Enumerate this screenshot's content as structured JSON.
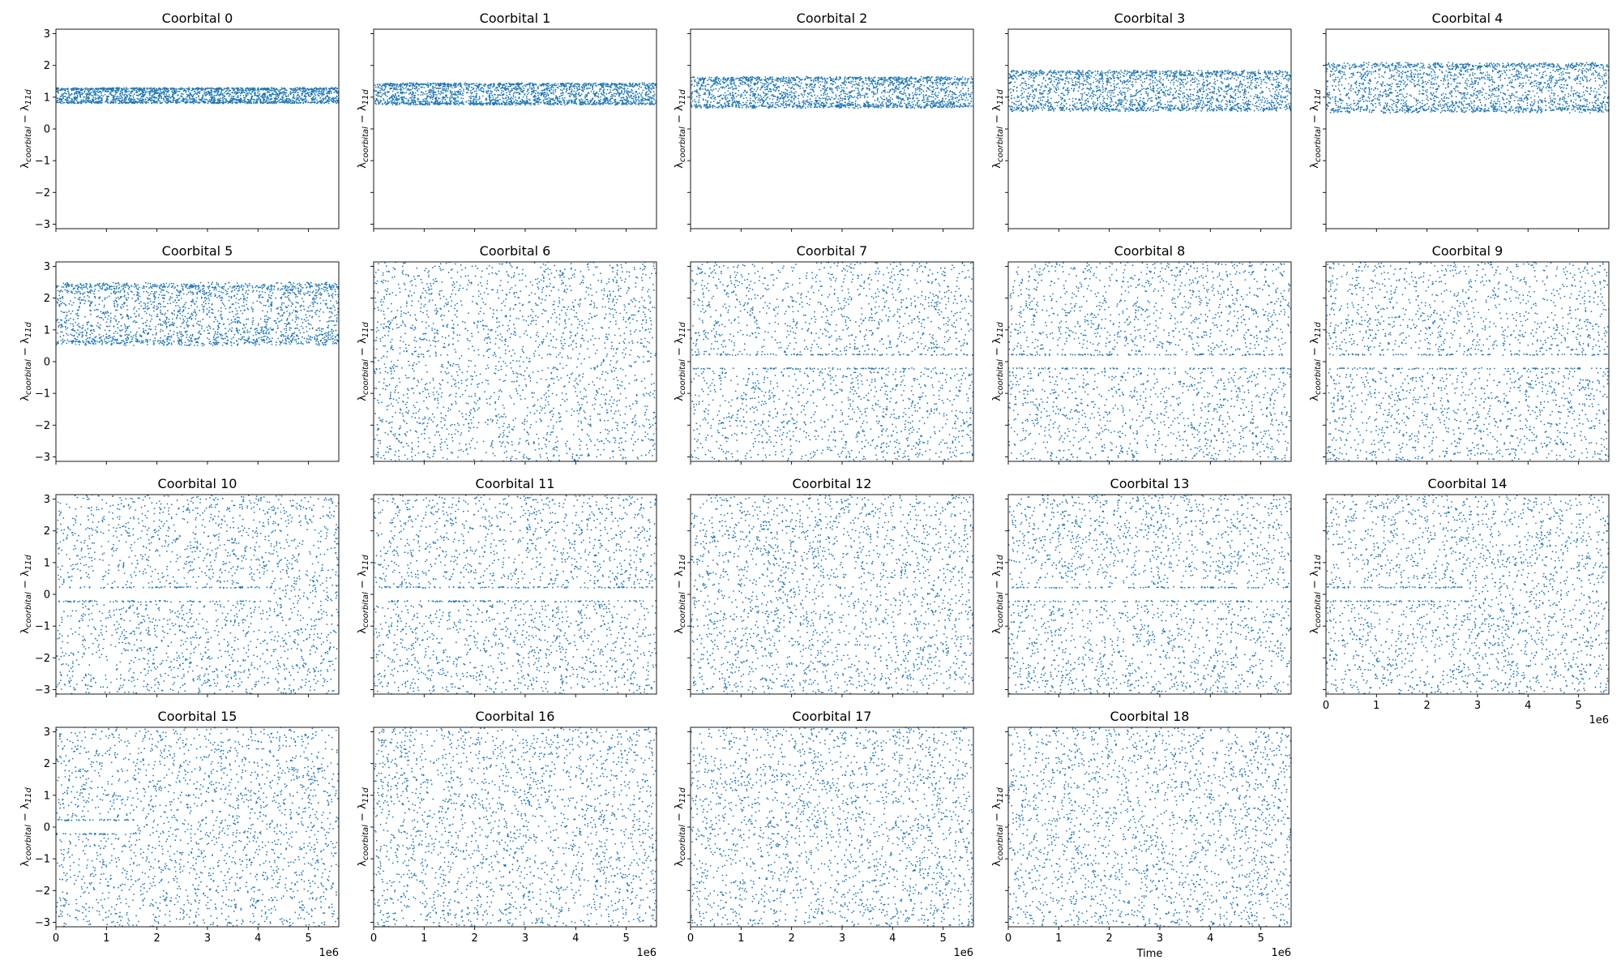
{
  "chart_data": {
    "type": "scatter",
    "layout": "grid",
    "rows": 4,
    "cols": 5,
    "shared_x": true,
    "shared_y": true,
    "marker_color": "#1f77b4",
    "xlim": [
      0,
      5600000
    ],
    "ylim": [
      -3.14159,
      3.14159
    ],
    "xticks": [
      0,
      1,
      2,
      3,
      4,
      5
    ],
    "yticks": [
      -3,
      -2,
      -1,
      0,
      1,
      2,
      3
    ],
    "x_offset_label": "1e6",
    "xlabel": "Time",
    "ylabel_main": "λ",
    "ylabel_sub": "coorbital",
    "ylabel_mid": " − λ",
    "ylabel_sub2": "11d",
    "subplots": [
      {
        "title": "Coorbital 0",
        "behavior": "band",
        "center": 1.05,
        "halfwidth": 0.25
      },
      {
        "title": "Coorbital 1",
        "behavior": "band",
        "center": 1.1,
        "halfwidth": 0.35
      },
      {
        "title": "Coorbital 2",
        "behavior": "band",
        "center": 1.15,
        "halfwidth": 0.5
      },
      {
        "title": "Coorbital 3",
        "behavior": "band",
        "center": 1.2,
        "halfwidth": 0.65
      },
      {
        "title": "Coorbital 4",
        "behavior": "band",
        "center": 1.3,
        "halfwidth": 0.8
      },
      {
        "title": "Coorbital 5",
        "behavior": "band",
        "center": 1.5,
        "halfwidth": 1.0
      },
      {
        "title": "Coorbital 6",
        "behavior": "circulating"
      },
      {
        "title": "Coorbital 7",
        "behavior": "circulating_gap",
        "gap_start_frac": 0.0,
        "gap_end_frac": 1.0
      },
      {
        "title": "Coorbital 8",
        "behavior": "circulating_gap",
        "gap_start_frac": 0.0,
        "gap_end_frac": 1.0
      },
      {
        "title": "Coorbital 9",
        "behavior": "circulating_gap",
        "gap_start_frac": 0.0,
        "gap_end_frac": 1.0
      },
      {
        "title": "Coorbital 10",
        "behavior": "circulating_gap",
        "gap_start_frac": 0.0,
        "gap_end_frac": 0.76
      },
      {
        "title": "Coorbital 11",
        "behavior": "circulating_gap",
        "gap_start_frac": 0.0,
        "gap_end_frac": 1.0
      },
      {
        "title": "Coorbital 12",
        "behavior": "circulating"
      },
      {
        "title": "Coorbital 13",
        "behavior": "circulating_gap",
        "gap_start_frac": 0.0,
        "gap_end_frac": 1.0
      },
      {
        "title": "Coorbital 14",
        "behavior": "circulating_gap",
        "gap_start_frac": 0.0,
        "gap_end_frac": 0.5
      },
      {
        "title": "Coorbital 15",
        "behavior": "circulating_gap",
        "gap_start_frac": 0.0,
        "gap_end_frac": 0.28
      },
      {
        "title": "Coorbital 16",
        "behavior": "circulating"
      },
      {
        "title": "Coorbital 17",
        "behavior": "circulating"
      },
      {
        "title": "Coorbital 18",
        "behavior": "circulating"
      }
    ]
  }
}
